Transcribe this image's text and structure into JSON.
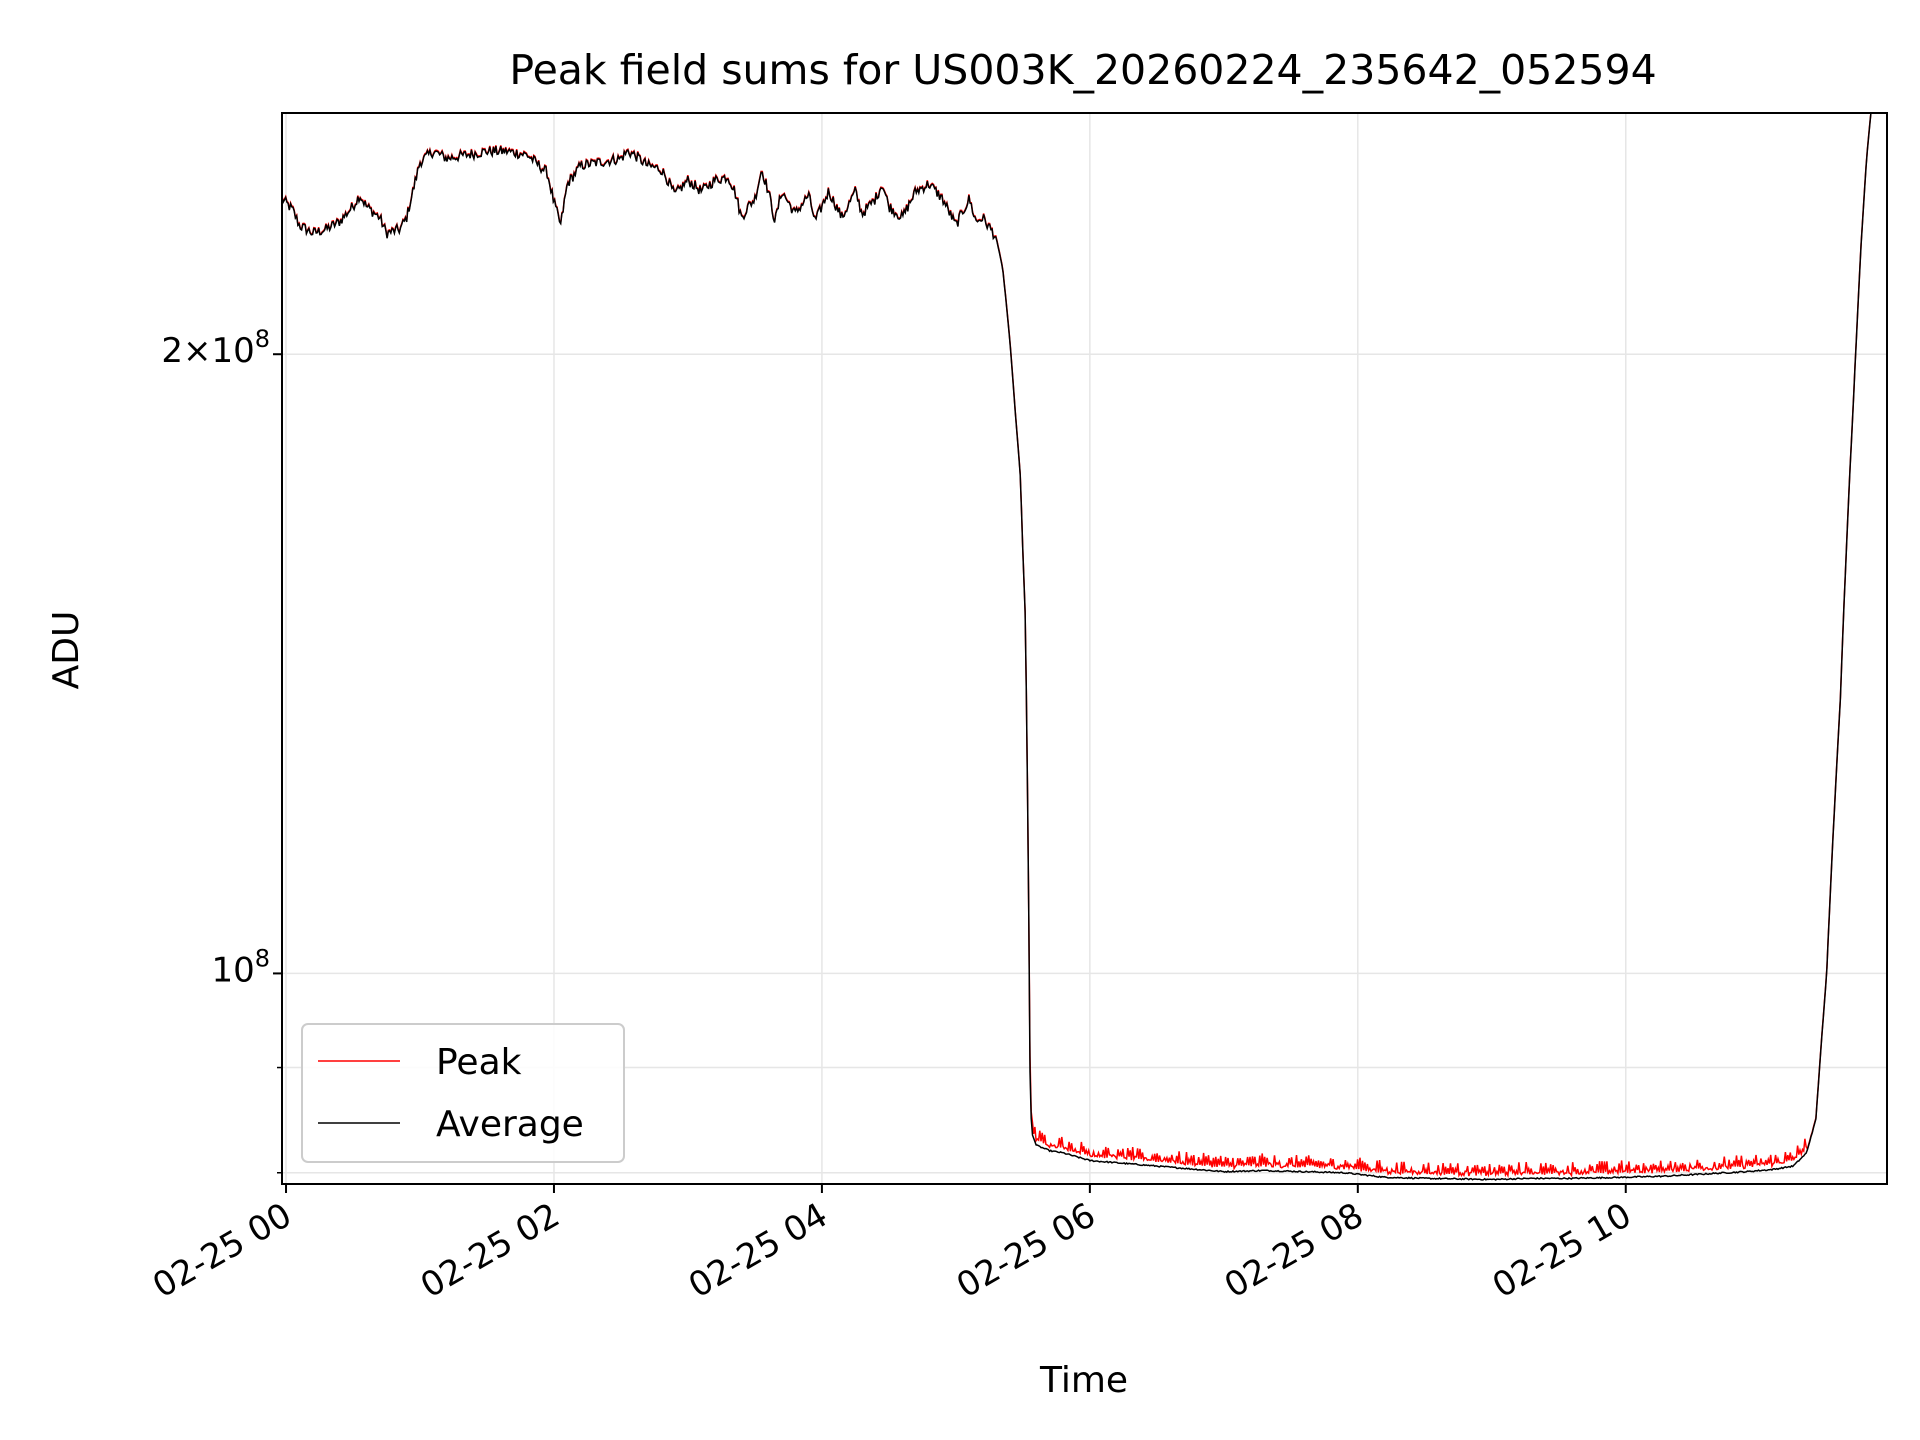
{
  "chart_data": {
    "type": "line",
    "title": "Peak field sums for US003K_20260224_235642_052594",
    "xlabel": "Time",
    "ylabel": "ADU",
    "yscale": "log",
    "ylim": [
      79000000,
      262000000
    ],
    "xlim_hours": [
      -0.03,
      11.95
    ],
    "grid": true,
    "legend_position": "lower-left",
    "x_ticks": [
      {
        "hour": 0,
        "label": "02-25 00"
      },
      {
        "hour": 2,
        "label": "02-25 02"
      },
      {
        "hour": 4,
        "label": "02-25 04"
      },
      {
        "hour": 6,
        "label": "02-25 06"
      },
      {
        "hour": 8,
        "label": "02-25 08"
      },
      {
        "hour": 10,
        "label": "02-25 10"
      }
    ],
    "y_ticks": [
      {
        "value": 100000000,
        "base": "10",
        "exp": "8"
      },
      {
        "value": 200000000,
        "base": "2×10",
        "exp": "8"
      }
    ],
    "y_minor_ticks": [
      80000000,
      90000000
    ],
    "series": [
      {
        "name": "Peak",
        "color": "#ff0000",
        "spiky_segment_hours": [
          5.55,
          11.35
        ],
        "spike_amplitude": 0.015
      },
      {
        "name": "Average",
        "color": "#000000",
        "points": [
          [
            -0.03,
            238
          ],
          [
            0.05,
            235
          ],
          [
            0.1,
            231
          ],
          [
            0.2,
            229
          ],
          [
            0.3,
            230
          ],
          [
            0.4,
            232
          ],
          [
            0.5,
            236
          ],
          [
            0.55,
            239
          ],
          [
            0.6,
            236
          ],
          [
            0.7,
            233
          ],
          [
            0.75,
            229
          ],
          [
            0.85,
            230
          ],
          [
            0.9,
            233
          ],
          [
            1.0,
            248
          ],
          [
            1.1,
            251
          ],
          [
            1.2,
            249
          ],
          [
            1.35,
            250
          ],
          [
            1.5,
            251
          ],
          [
            1.65,
            251
          ],
          [
            1.8,
            250
          ],
          [
            1.95,
            245
          ],
          [
            2.0,
            237
          ],
          [
            2.05,
            231
          ],
          [
            2.1,
            242
          ],
          [
            2.2,
            247
          ],
          [
            2.35,
            248
          ],
          [
            2.5,
            249
          ],
          [
            2.55,
            251
          ],
          [
            2.6,
            250
          ],
          [
            2.7,
            247
          ],
          [
            2.8,
            246
          ],
          [
            2.85,
            243
          ],
          [
            2.9,
            239
          ],
          [
            3.0,
            243
          ],
          [
            3.1,
            240
          ],
          [
            3.2,
            243
          ],
          [
            3.3,
            244
          ],
          [
            3.35,
            240
          ],
          [
            3.4,
            233
          ],
          [
            3.45,
            236
          ],
          [
            3.5,
            238
          ],
          [
            3.55,
            246
          ],
          [
            3.6,
            240
          ],
          [
            3.65,
            232
          ],
          [
            3.7,
            240
          ],
          [
            3.8,
            234
          ],
          [
            3.9,
            239
          ],
          [
            3.95,
            232
          ],
          [
            4.05,
            240
          ],
          [
            4.15,
            233
          ],
          [
            4.25,
            240
          ],
          [
            4.3,
            234
          ],
          [
            4.4,
            238
          ],
          [
            4.45,
            242
          ],
          [
            4.5,
            236
          ],
          [
            4.6,
            233
          ],
          [
            4.7,
            240
          ],
          [
            4.8,
            242
          ],
          [
            4.9,
            238
          ],
          [
            5.0,
            231
          ],
          [
            5.1,
            238
          ],
          [
            5.15,
            232
          ],
          [
            5.2,
            233
          ],
          [
            5.3,
            228
          ],
          [
            5.35,
            220
          ],
          [
            5.4,
            204
          ],
          [
            5.45,
            185
          ],
          [
            5.48,
            175
          ],
          [
            5.5,
            160
          ],
          [
            5.52,
            148
          ],
          [
            5.53,
            130
          ],
          [
            5.545,
            105
          ],
          [
            5.555,
            86.5
          ],
          [
            5.57,
            83.5
          ],
          [
            5.6,
            82.5
          ],
          [
            5.7,
            82.0
          ],
          [
            5.8,
            81.8
          ],
          [
            6.0,
            81.1
          ],
          [
            6.2,
            80.9
          ],
          [
            6.5,
            80.6
          ],
          [
            6.8,
            80.3
          ],
          [
            7.0,
            80.1
          ],
          [
            7.3,
            80.2
          ],
          [
            7.6,
            80.1
          ],
          [
            7.9,
            80.0
          ],
          [
            8.2,
            79.6
          ],
          [
            8.5,
            79.5
          ],
          [
            9.0,
            79.4
          ],
          [
            9.3,
            79.5
          ],
          [
            9.6,
            79.5
          ],
          [
            10.0,
            79.6
          ],
          [
            10.3,
            79.7
          ],
          [
            10.6,
            79.9
          ],
          [
            10.9,
            80.1
          ],
          [
            11.1,
            80.3
          ],
          [
            11.25,
            80.6
          ],
          [
            11.35,
            81.8
          ],
          [
            11.42,
            85
          ],
          [
            11.5,
            100
          ],
          [
            11.6,
            135
          ],
          [
            11.7,
            190
          ],
          [
            11.76,
            228
          ],
          [
            11.8,
            250
          ],
          [
            11.83,
            262
          ]
        ]
      }
    ]
  }
}
